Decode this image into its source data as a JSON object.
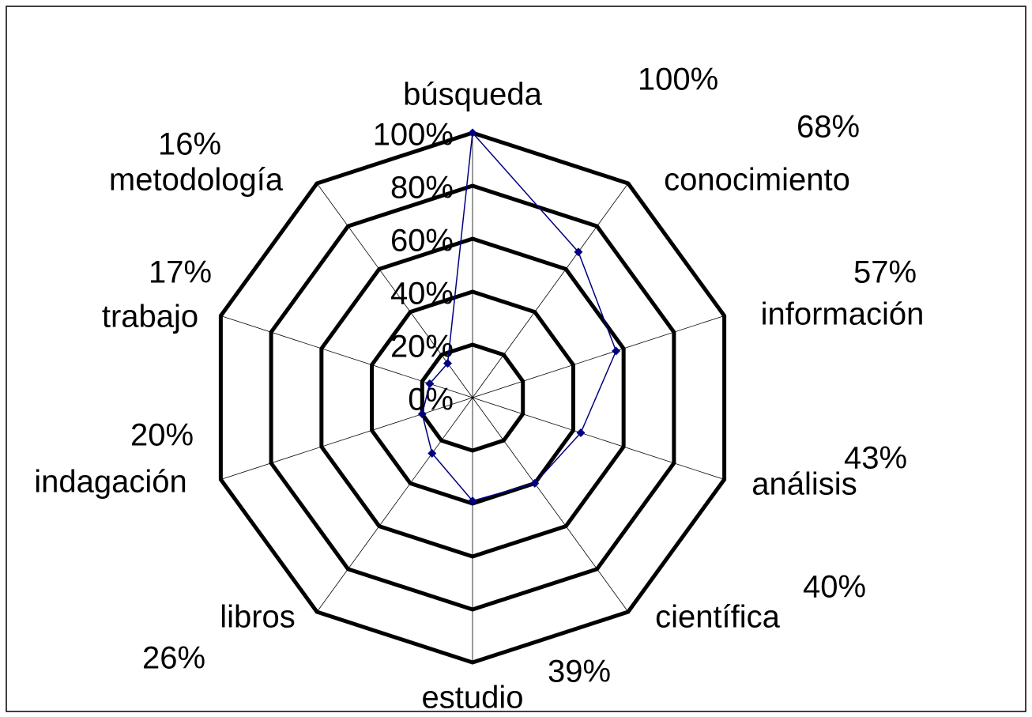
{
  "chart_data": {
    "type": "radar",
    "categories": [
      "búsqueda",
      "conocimiento",
      "información",
      "análisis",
      "científica",
      "estudio",
      "libros",
      "indagación",
      "trabajo",
      "metodología"
    ],
    "values": [
      100,
      68,
      57,
      43,
      40,
      39,
      26,
      20,
      17,
      16
    ],
    "value_labels": [
      "100%",
      "68%",
      "57%",
      "43%",
      "40%",
      "39%",
      "26%",
      "20%",
      "17%",
      "16%"
    ],
    "color": "#000080",
    "ylim": [
      0,
      100
    ],
    "yticks": [
      {
        "value": 0,
        "label": "0%"
      },
      {
        "value": 20,
        "label": "20%"
      },
      {
        "value": 40,
        "label": "40%"
      },
      {
        "value": 60,
        "label": "60%"
      },
      {
        "value": 80,
        "label": "80%"
      },
      {
        "value": 100,
        "label": "100%"
      }
    ],
    "grid": true
  }
}
